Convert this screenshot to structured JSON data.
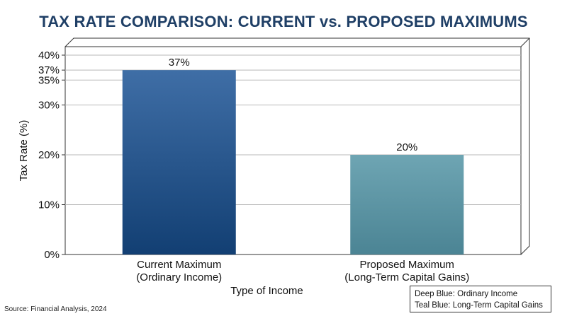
{
  "chart_data": {
    "type": "bar",
    "title": "TAX RATE COMPARISON: CURRENT vs. PROPOSED MAXIMUMS",
    "xlabel": "Type of Income",
    "ylabel": "Tax Rate (%)",
    "ylim": [
      0,
      40
    ],
    "yticks": [
      "0%",
      "10%",
      "20%",
      "30%",
      "35%",
      "37%",
      "40%"
    ],
    "ytick_values": [
      0,
      10,
      20,
      30,
      35,
      37,
      40
    ],
    "categories": [
      [
        "Current Maximum",
        "(Ordinary Income)"
      ],
      [
        "Proposed Maximum",
        "(Long-Term Capital Gains)"
      ]
    ],
    "values": [
      37,
      20
    ],
    "value_labels": [
      "37%",
      "20%"
    ],
    "colors": [
      "#1a4a82",
      "#5f97a6"
    ],
    "grid": true,
    "legend_entries": [
      "Deep Blue: Ordinary Income",
      "Teal Blue: Long-Term Capital Gains"
    ],
    "legend_position": "bottom-right"
  },
  "source": "Source: Financial Analysis, 2024"
}
